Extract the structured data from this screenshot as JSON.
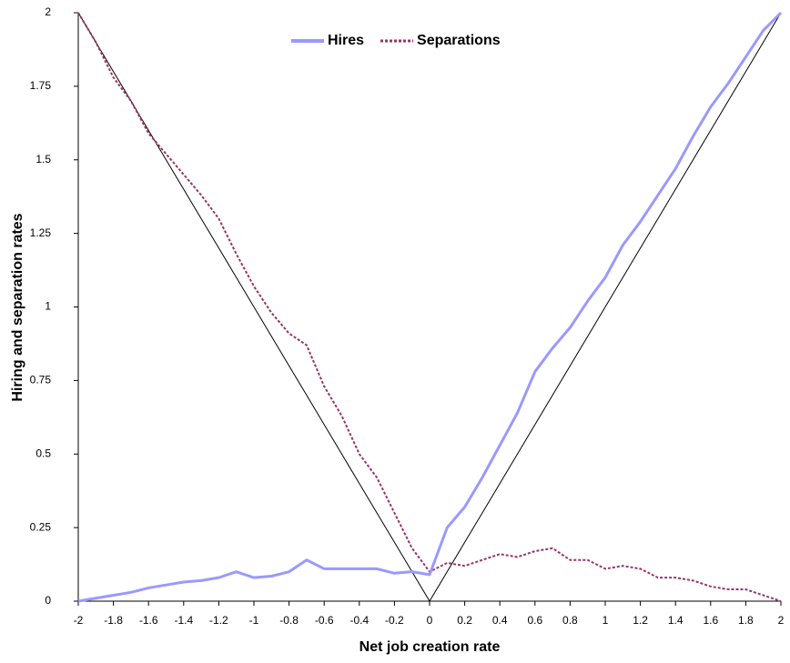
{
  "chart_data": {
    "type": "line",
    "xlabel": "Net job creation rate",
    "ylabel": "Hiring and separation rates",
    "x": [
      -2,
      -1.9,
      -1.8,
      -1.7,
      -1.6,
      -1.5,
      -1.4,
      -1.3,
      -1.2,
      -1.1,
      -1,
      -0.9,
      -0.8,
      -0.7,
      -0.6,
      -0.5,
      -0.4,
      -0.3,
      -0.2,
      -0.1,
      0,
      0.1,
      0.2,
      0.3,
      0.4,
      0.5,
      0.6,
      0.7,
      0.8,
      0.9,
      1,
      1.1,
      1.2,
      1.3,
      1.4,
      1.5,
      1.6,
      1.7,
      1.8,
      1.9,
      2
    ],
    "series": [
      {
        "name": "Hires",
        "color": "#9999ff",
        "dashed": false,
        "width": 3,
        "values": [
          0,
          0.01,
          0.02,
          0.03,
          0.045,
          0.055,
          0.065,
          0.07,
          0.08,
          0.1,
          0.08,
          0.085,
          0.1,
          0.14,
          0.11,
          0.11,
          0.11,
          0.11,
          0.095,
          0.1,
          0.09,
          0.25,
          0.32,
          0.42,
          0.53,
          0.64,
          0.78,
          0.86,
          0.93,
          1.02,
          1.1,
          1.21,
          1.29,
          1.38,
          1.47,
          1.58,
          1.68,
          1.76,
          1.85,
          1.94,
          2
        ]
      },
      {
        "name": "Separations",
        "color": "#993366",
        "dashed": true,
        "width": 2,
        "values": [
          2,
          1.9,
          1.78,
          1.7,
          1.59,
          1.52,
          1.45,
          1.38,
          1.3,
          1.18,
          1.07,
          0.98,
          0.91,
          0.87,
          0.73,
          0.63,
          0.5,
          0.42,
          0.3,
          0.18,
          0.1,
          0.13,
          0.12,
          0.14,
          0.16,
          0.15,
          0.17,
          0.18,
          0.14,
          0.14,
          0.11,
          0.12,
          0.11,
          0.08,
          0.08,
          0.07,
          0.05,
          0.04,
          0.04,
          0.02,
          0
        ]
      },
      {
        "color": "#000000",
        "dashed": false,
        "width": 1,
        "values": [
          2,
          1.9,
          1.8,
          1.7,
          1.6,
          1.5,
          1.4,
          1.3,
          1.2,
          1.1,
          1,
          0.9,
          0.8,
          0.7,
          0.6,
          0.5,
          0.4,
          0.3,
          0.2,
          0.1,
          0,
          0.1,
          0.2,
          0.3,
          0.4,
          0.5,
          0.6,
          0.7,
          0.8,
          0.9,
          1,
          1.1,
          1.2,
          1.3,
          1.4,
          1.5,
          1.6,
          1.7,
          1.8,
          1.9,
          2
        ]
      }
    ],
    "xlim": [
      -2,
      2
    ],
    "xticks": [
      -2,
      -1.8,
      -1.6,
      -1.4,
      -1.2,
      -1,
      -0.8,
      -0.6,
      -0.4,
      -0.2,
      0,
      0.2,
      0.4,
      0.6,
      0.8,
      1,
      1.2,
      1.4,
      1.6,
      1.8,
      2
    ],
    "ylim": [
      0,
      2
    ],
    "yticks": [
      0,
      0.25,
      0.5,
      0.75,
      1,
      1.25,
      1.5,
      1.75,
      2
    ],
    "grid": false,
    "legend": "top"
  }
}
